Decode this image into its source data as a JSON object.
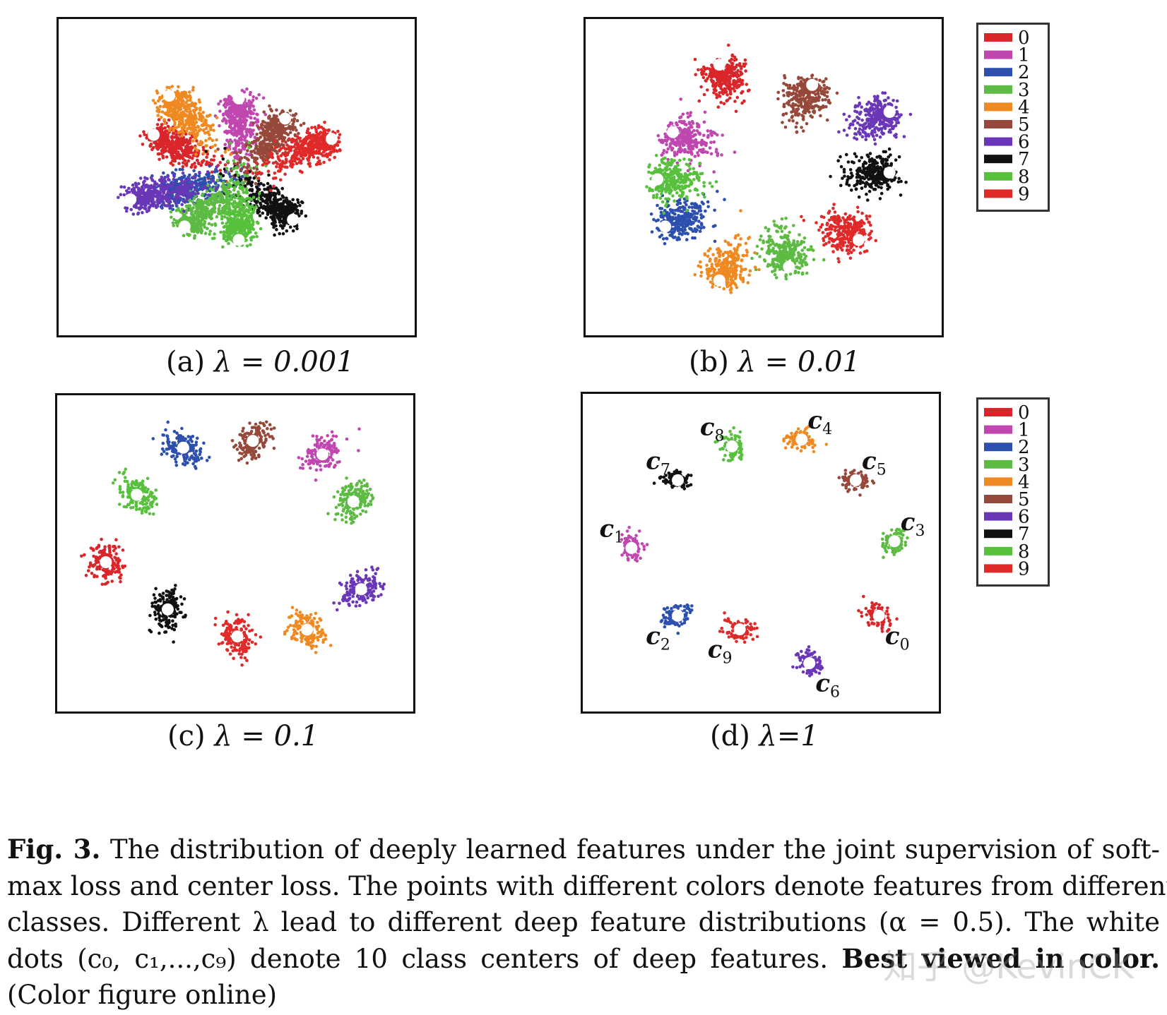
{
  "panels": [
    {
      "id": "a",
      "label": "(a)",
      "lambda_text": "λ = 0.001"
    },
    {
      "id": "b",
      "label": "(b)",
      "lambda_text": "λ = 0.01"
    },
    {
      "id": "c",
      "label": "(c)",
      "lambda_text": "λ = 0.1"
    },
    {
      "id": "d",
      "label": "(d)",
      "lambda_text": "λ=1"
    }
  ],
  "legend": {
    "entries": [
      "0",
      "1",
      "2",
      "3",
      "4",
      "5",
      "6",
      "7",
      "8",
      "9"
    ],
    "colors": [
      "#d9262a",
      "#c047b0",
      "#2d4fae",
      "#5dbb43",
      "#ef8a22",
      "#96493a",
      "#6a37b8",
      "#111111",
      "#57c03d",
      "#e02a2a"
    ]
  },
  "center_labels": {
    "prefix": "c",
    "indices": [
      "0",
      "1",
      "2",
      "3",
      "4",
      "5",
      "6",
      "7",
      "8",
      "9"
    ]
  },
  "caption": {
    "fig_label": "Fig. 3.",
    "line1": "The distribution of deeply learned features under the joint supervision of soft-",
    "line2": "max loss and center loss. The points with different colors denote features from different",
    "line3": "classes. Different λ lead to different deep feature distributions (α = 0.5). The white",
    "line4_pre": "dots (c₀, c₁,...,c₉) denote 10 class centers of deep features.",
    "line4_bold": "Best viewed in color.",
    "line5": "(Color figure online)"
  },
  "watermark": "知乎 @KevinCK",
  "chart_data": [
    {
      "type": "scatter",
      "title": "(a) λ = 0.001",
      "series": [
        {
          "name": "0",
          "center": [
            -0.55,
            0.33
          ]
        },
        {
          "name": "1",
          "center": [
            0.0,
            0.6
          ]
        },
        {
          "name": "2",
          "center": [
            -0.5,
            -0.1
          ]
        },
        {
          "name": "3",
          "center": [
            -0.35,
            -0.35
          ]
        },
        {
          "name": "4",
          "center": [
            -0.45,
            0.62
          ]
        },
        {
          "name": "5",
          "center": [
            0.3,
            0.45
          ]
        },
        {
          "name": "6",
          "center": [
            -0.7,
            -0.15
          ]
        },
        {
          "name": "7",
          "center": [
            0.35,
            -0.3
          ]
        },
        {
          "name": "8",
          "center": [
            0.0,
            -0.45
          ]
        },
        {
          "name": "9",
          "center": [
            0.6,
            0.3
          ]
        }
      ],
      "notes": "radial elongated clusters; white dots mark class centers"
    },
    {
      "type": "scatter",
      "title": "(b) λ = 0.01",
      "series": [
        {
          "name": "0",
          "center": [
            -0.3,
            0.85
          ]
        },
        {
          "name": "1",
          "center": [
            -0.6,
            0.35
          ]
        },
        {
          "name": "2",
          "center": [
            -0.65,
            -0.35
          ]
        },
        {
          "name": "3",
          "center": [
            0.15,
            -0.65
          ]
        },
        {
          "name": "4",
          "center": [
            -0.3,
            -0.75
          ]
        },
        {
          "name": "5",
          "center": [
            0.3,
            0.7
          ]
        },
        {
          "name": "6",
          "center": [
            0.8,
            0.5
          ]
        },
        {
          "name": "7",
          "center": [
            0.8,
            0.05
          ]
        },
        {
          "name": "8",
          "center": [
            -0.7,
            0.0
          ]
        },
        {
          "name": "9",
          "center": [
            0.6,
            -0.45
          ]
        }
      ]
    },
    {
      "type": "scatter",
      "title": "(c) λ = 0.1",
      "series": [
        {
          "name": "0",
          "center": [
            -0.85,
            -0.05
          ]
        },
        {
          "name": "1",
          "center": [
            0.55,
            0.75
          ]
        },
        {
          "name": "2",
          "center": [
            -0.35,
            0.8
          ]
        },
        {
          "name": "3",
          "center": [
            0.75,
            0.4
          ]
        },
        {
          "name": "4",
          "center": [
            0.45,
            -0.55
          ]
        },
        {
          "name": "5",
          "center": [
            0.1,
            0.85
          ]
        },
        {
          "name": "6",
          "center": [
            0.8,
            -0.25
          ]
        },
        {
          "name": "7",
          "center": [
            -0.45,
            -0.4
          ]
        },
        {
          "name": "8",
          "center": [
            -0.65,
            0.45
          ]
        },
        {
          "name": "9",
          "center": [
            0.0,
            -0.6
          ]
        }
      ]
    },
    {
      "type": "scatter",
      "title": "(d) λ=1",
      "series": [
        {
          "name": "0",
          "center": [
            0.75,
            -0.45
          ]
        },
        {
          "name": "1",
          "center": [
            -0.85,
            0.05
          ]
        },
        {
          "name": "2",
          "center": [
            -0.55,
            -0.45
          ]
        },
        {
          "name": "3",
          "center": [
            0.85,
            0.1
          ]
        },
        {
          "name": "4",
          "center": [
            0.25,
            0.85
          ]
        },
        {
          "name": "5",
          "center": [
            0.6,
            0.55
          ]
        },
        {
          "name": "6",
          "center": [
            0.3,
            -0.8
          ]
        },
        {
          "name": "7",
          "center": [
            -0.55,
            0.55
          ]
        },
        {
          "name": "8",
          "center": [
            -0.2,
            0.8
          ]
        },
        {
          "name": "9",
          "center": [
            -0.15,
            -0.55
          ]
        }
      ]
    }
  ]
}
